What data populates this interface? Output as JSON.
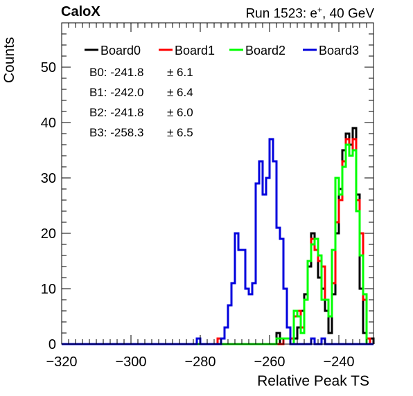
{
  "header": {
    "left": "CaloX",
    "right_prefix": "Run 1523: e",
    "right_sup": "+",
    "right_suffix": ", 40 GeV"
  },
  "chart_data": {
    "type": "histogram-step",
    "xlabel": "Relative Peak TS",
    "ylabel": "Counts",
    "xlim": [
      -320,
      -230
    ],
    "ylim": [
      0,
      58
    ],
    "x_ticks": [
      -320,
      -300,
      -280,
      -260,
      -240
    ],
    "y_ticks": [
      0,
      10,
      20,
      30,
      40,
      50
    ],
    "grid": false,
    "legend_position": "top",
    "x": [
      -320,
      -319,
      -318,
      -317,
      -316,
      -315,
      -314,
      -313,
      -312,
      -311,
      -310,
      -309,
      -308,
      -307,
      -306,
      -305,
      -304,
      -303,
      -302,
      -301,
      -300,
      -299,
      -298,
      -297,
      -296,
      -295,
      -294,
      -293,
      -292,
      -291,
      -290,
      -289,
      -288,
      -287,
      -286,
      -285,
      -284,
      -283,
      -282,
      -281,
      -280,
      -279,
      -278,
      -277,
      -276,
      -275,
      -274,
      -273,
      -272,
      -271,
      -270,
      -269,
      -268,
      -267,
      -266,
      -265,
      -264,
      -263,
      -262,
      -261,
      -260,
      -259,
      -258,
      -257,
      -256,
      -255,
      -254,
      -253,
      -252,
      -251,
      -250,
      -249,
      -248,
      -247,
      -246,
      -245,
      -244,
      -243,
      -242,
      -241,
      -240,
      -239,
      -238,
      -237,
      -236,
      -235,
      -234,
      -233,
      -232,
      -231
    ],
    "series": [
      {
        "name": "Board0",
        "color": "#000000",
        "values": [
          0,
          0,
          0,
          0,
          0,
          0,
          0,
          0,
          0,
          0,
          0,
          0,
          0,
          0,
          0,
          0,
          0,
          0,
          0,
          0,
          0,
          0,
          0,
          0,
          0,
          0,
          0,
          0,
          0,
          0,
          0,
          0,
          0,
          0,
          0,
          0,
          0,
          0,
          0,
          0,
          0,
          0,
          0,
          0,
          0,
          0,
          0,
          0,
          0,
          0,
          0,
          0,
          0,
          0,
          0,
          0,
          0,
          0,
          0,
          0,
          0,
          0,
          2,
          0,
          1,
          1,
          0,
          1,
          3,
          6,
          9,
          14,
          20,
          17,
          12,
          10,
          6,
          2,
          9,
          20,
          28,
          35,
          38,
          36,
          39,
          27,
          10,
          2,
          0,
          1
        ]
      },
      {
        "name": "Board1",
        "color": "#ff0000",
        "values": [
          0,
          0,
          0,
          0,
          0,
          0,
          0,
          0,
          0,
          0,
          0,
          0,
          0,
          0,
          0,
          0,
          0,
          0,
          0,
          0,
          0,
          0,
          0,
          0,
          0,
          0,
          0,
          0,
          0,
          0,
          0,
          0,
          0,
          0,
          0,
          0,
          0,
          0,
          0,
          0,
          0,
          0,
          0,
          0,
          0,
          1,
          0,
          0,
          0,
          0,
          0,
          0,
          0,
          0,
          0,
          0,
          0,
          0,
          0,
          0,
          0,
          0,
          0,
          0,
          1,
          1,
          1,
          5,
          6,
          3,
          8,
          15,
          19,
          17,
          15,
          14,
          8,
          5,
          11,
          22,
          26,
          33,
          37,
          34,
          37,
          26,
          20,
          8,
          1,
          0
        ]
      },
      {
        "name": "Board2",
        "color": "#00ff00",
        "values": [
          0,
          0,
          0,
          0,
          0,
          0,
          0,
          0,
          0,
          0,
          0,
          0,
          0,
          0,
          0,
          0,
          0,
          0,
          0,
          0,
          0,
          0,
          0,
          0,
          0,
          0,
          0,
          0,
          0,
          0,
          0,
          0,
          0,
          0,
          0,
          0,
          0,
          0,
          0,
          0,
          0,
          0,
          0,
          0,
          0,
          0,
          0,
          0,
          0,
          0,
          0,
          0,
          0,
          0,
          0,
          0,
          0,
          0,
          0,
          0,
          0,
          0,
          1,
          1,
          1,
          1,
          0,
          6,
          5,
          2,
          8,
          15,
          18,
          19,
          16,
          8,
          8,
          5,
          17,
          30,
          27,
          32,
          36,
          34,
          35,
          24,
          16,
          9,
          0,
          0
        ]
      },
      {
        "name": "Board3",
        "color": "#0000dd",
        "values": [
          0,
          0,
          0,
          0,
          0,
          0,
          0,
          0,
          0,
          0,
          0,
          0,
          0,
          0,
          0,
          0,
          0,
          0,
          0,
          0,
          0,
          0,
          0,
          0,
          0,
          0,
          0,
          0,
          0,
          0,
          0,
          0,
          0,
          0,
          0,
          0,
          0,
          0,
          0,
          1,
          0,
          0,
          0,
          0,
          0,
          0,
          1,
          3,
          7,
          11,
          20,
          17,
          17,
          10,
          9,
          11,
          29,
          33,
          27,
          30,
          37,
          33,
          21,
          19,
          10,
          3,
          0,
          0,
          0,
          0,
          0,
          0,
          1,
          0,
          0,
          1,
          0,
          0,
          0,
          0,
          0,
          0,
          0,
          0,
          0,
          0,
          0,
          0,
          0,
          0
        ]
      }
    ],
    "stats": [
      {
        "label": "B0:",
        "mean": "-241.8",
        "sigma": "± 6.1"
      },
      {
        "label": "B1:",
        "mean": "-242.0",
        "sigma": "± 6.4"
      },
      {
        "label": "B2:",
        "mean": "-241.8",
        "sigma": "± 6.0"
      },
      {
        "label": "B3:",
        "mean": "-258.3",
        "sigma": "± 6.5"
      }
    ]
  }
}
